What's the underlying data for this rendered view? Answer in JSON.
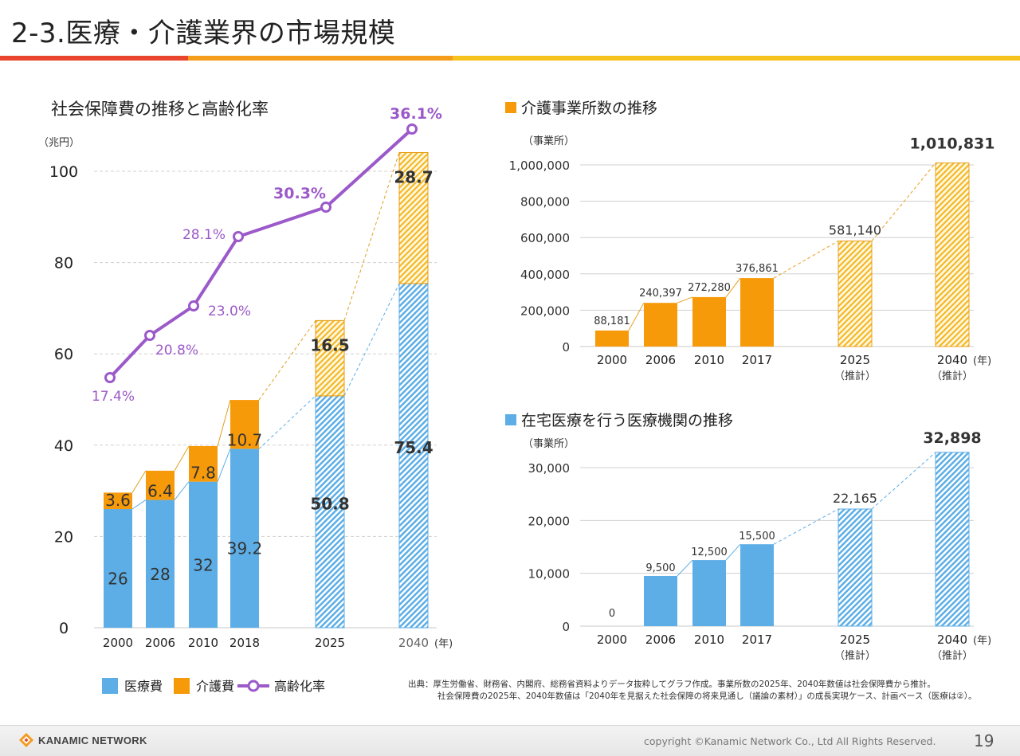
{
  "page": {
    "title": "2-3.医療・介護業界の市場規模",
    "source_line1": "出典：厚生労働省、財務省、内閣府、総務省資料よりデータ抜粋してグラフ作成。事業所数の2025年、2040年数値は社会保障費から推計。",
    "source_line2": "社会保障費の2025年、2040年数値は「2040年を見据えた社会保障の将来見通し（議論の素材）」の成長実現ケース、計画ベース（医療は②）。",
    "copyright": "copyright ©Kanamic Network Co., Ltd All Rights Reserved.",
    "page_number": "19",
    "logo_text": "KANAMIC NETWORK"
  },
  "colors": {
    "medical": "#5daee6",
    "care": "#f79a0a",
    "rate": "#9b59c9",
    "rule_red": "#e8452c",
    "rule_orange": "#f59c1a",
    "rule_yellow": "#f6c21b"
  },
  "chart_data": [
    {
      "type": "bar",
      "title": "社会保障費の推移と高齢化率",
      "ylabel": "（兆円）",
      "xlabel": "(年)",
      "ylim": [
        0,
        100
      ],
      "yticks": [
        "0",
        "20",
        "40",
        "60",
        "80",
        "100"
      ],
      "yticks_values": [
        0,
        20,
        40,
        60,
        80,
        100
      ],
      "categories": [
        "2000",
        "2006",
        "2010",
        "2018",
        "2025",
        "2040"
      ],
      "estimated": [
        false,
        false,
        false,
        false,
        true,
        true
      ],
      "series": [
        {
          "name": "医療費",
          "values": [
            26,
            28,
            32,
            39.2,
            50.8,
            75.4
          ],
          "labels": [
            "26",
            "28",
            "32",
            "39.2",
            "50.8",
            "75.4"
          ]
        },
        {
          "name": "介護費",
          "values": [
            3.6,
            6.4,
            7.8,
            10.7,
            16.5,
            28.7
          ],
          "labels": [
            "3.6",
            "6.4",
            "7.8",
            "10.7",
            "16.5",
            "28.7"
          ]
        },
        {
          "name": "高齢化率",
          "values": [
            17.4,
            20.8,
            23.0,
            28.1,
            30.3,
            36.1
          ],
          "labels": [
            "17.4%",
            "20.8%",
            "23.0%",
            "28.1%",
            "30.3%",
            "36.1%"
          ]
        }
      ],
      "legend": [
        "医療費",
        "介護費",
        "高齢化率"
      ],
      "legend_position": "bottom"
    },
    {
      "type": "bar",
      "title": "介護事業所数の推移",
      "ylabel": "（事業所）",
      "xlabel": "(年)",
      "ylim": [
        0,
        1000000
      ],
      "yticks": [
        "0",
        "200,000",
        "400,000",
        "600,000",
        "800,000",
        "1,000,000"
      ],
      "yticks_values": [
        0,
        200000,
        400000,
        600000,
        800000,
        1000000
      ],
      "categories": [
        "2000",
        "2006",
        "2010",
        "2017",
        "2025",
        "2040"
      ],
      "category_notes": [
        "",
        "",
        "",
        "",
        "（推計）",
        "（推計）"
      ],
      "estimated": [
        false,
        false,
        false,
        false,
        true,
        true
      ],
      "values": [
        88181,
        240397,
        272280,
        376861,
        581140,
        1010831
      ],
      "labels": [
        "88,181",
        "240,397",
        "272,280",
        "376,861",
        "581,140",
        "1,010,831"
      ]
    },
    {
      "type": "bar",
      "title": "在宅医療を行う医療機関の推移",
      "ylabel": "（事業所）",
      "xlabel": "(年)",
      "ylim": [
        0,
        30000
      ],
      "yticks": [
        "0",
        "10,000",
        "20,000",
        "30,000"
      ],
      "yticks_values": [
        0,
        10000,
        20000,
        30000
      ],
      "categories": [
        "2000",
        "2006",
        "2010",
        "2017",
        "2025",
        "2040"
      ],
      "category_notes": [
        "",
        "",
        "",
        "",
        "（推計）",
        "（推計）"
      ],
      "estimated": [
        false,
        false,
        false,
        false,
        true,
        true
      ],
      "values": [
        0,
        9500,
        12500,
        15500,
        22165,
        32898
      ],
      "labels": [
        "0",
        "9,500",
        "12,500",
        "15,500",
        "22,165",
        "32,898"
      ]
    }
  ]
}
